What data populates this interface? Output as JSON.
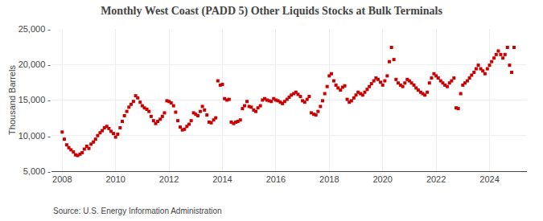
{
  "chart_data": {
    "type": "scatter",
    "title": "Monthly West Coast (PADD 5) Other Liquids Stocks at Bulk Terminals",
    "ylabel": "Thousand Barrels",
    "annotations": [
      "Source: U.S. Energy Information Administration"
    ],
    "color": "#cc0000",
    "marker": "square",
    "grid": true,
    "xlim": [
      2007.6,
      2025.4
    ],
    "ylim": [
      5000,
      25000
    ],
    "xticks": [
      2008,
      2010,
      2012,
      2014,
      2016,
      2018,
      2020,
      2022,
      2024
    ],
    "yticks": [
      {
        "value": 5000,
        "label": "5,000 -"
      },
      {
        "value": 10000,
        "label": "10,000 -"
      },
      {
        "value": 15000,
        "label": "15,000 -"
      },
      {
        "value": 20000,
        "label": "20,000 -"
      },
      {
        "value": 25000,
        "label": "25,000 -"
      }
    ],
    "x": [
      2008.0,
      2008.08,
      2008.17,
      2008.25,
      2008.33,
      2008.42,
      2008.5,
      2008.58,
      2008.67,
      2008.75,
      2008.83,
      2008.92,
      2009.0,
      2009.08,
      2009.17,
      2009.25,
      2009.33,
      2009.42,
      2009.5,
      2009.58,
      2009.67,
      2009.75,
      2009.83,
      2009.92,
      2010.0,
      2010.08,
      2010.17,
      2010.25,
      2010.33,
      2010.42,
      2010.5,
      2010.58,
      2010.67,
      2010.75,
      2010.83,
      2010.92,
      2011.0,
      2011.08,
      2011.17,
      2011.25,
      2011.33,
      2011.42,
      2011.5,
      2011.58,
      2011.67,
      2011.75,
      2011.83,
      2011.92,
      2012.0,
      2012.08,
      2012.17,
      2012.25,
      2012.33,
      2012.42,
      2012.5,
      2012.58,
      2012.67,
      2012.75,
      2012.83,
      2012.92,
      2013.0,
      2013.08,
      2013.17,
      2013.25,
      2013.33,
      2013.42,
      2013.5,
      2013.58,
      2013.67,
      2013.75,
      2013.83,
      2013.92,
      2014.0,
      2014.08,
      2014.17,
      2014.25,
      2014.33,
      2014.42,
      2014.5,
      2014.58,
      2014.67,
      2014.75,
      2014.83,
      2014.92,
      2015.0,
      2015.08,
      2015.17,
      2015.25,
      2015.33,
      2015.42,
      2015.5,
      2015.58,
      2015.67,
      2015.75,
      2015.83,
      2015.92,
      2016.0,
      2016.08,
      2016.17,
      2016.25,
      2016.33,
      2016.42,
      2016.5,
      2016.58,
      2016.67,
      2016.75,
      2016.83,
      2016.92,
      2017.0,
      2017.08,
      2017.17,
      2017.25,
      2017.33,
      2017.42,
      2017.5,
      2017.58,
      2017.67,
      2017.75,
      2017.83,
      2017.92,
      2018.0,
      2018.08,
      2018.17,
      2018.25,
      2018.33,
      2018.42,
      2018.5,
      2018.58,
      2018.67,
      2018.75,
      2018.83,
      2018.92,
      2019.0,
      2019.08,
      2019.17,
      2019.25,
      2019.33,
      2019.42,
      2019.5,
      2019.58,
      2019.67,
      2019.75,
      2019.83,
      2019.92,
      2020.0,
      2020.08,
      2020.17,
      2020.25,
      2020.33,
      2020.42,
      2020.5,
      2020.58,
      2020.67,
      2020.75,
      2020.83,
      2020.92,
      2021.0,
      2021.08,
      2021.17,
      2021.25,
      2021.33,
      2021.42,
      2021.5,
      2021.58,
      2021.67,
      2021.75,
      2021.83,
      2021.92,
      2022.0,
      2022.08,
      2022.17,
      2022.25,
      2022.33,
      2022.42,
      2022.5,
      2022.58,
      2022.67,
      2022.75,
      2022.83,
      2022.92,
      2023.0,
      2023.08,
      2023.17,
      2023.25,
      2023.33,
      2023.42,
      2023.5,
      2023.58,
      2023.67,
      2023.75,
      2023.83,
      2023.92,
      2024.0,
      2024.08,
      2024.17,
      2024.25,
      2024.33,
      2024.42,
      2024.5,
      2024.58,
      2024.67,
      2024.75,
      2024.83,
      2024.92
    ],
    "values": [
      10500,
      9500,
      8700,
      8300,
      8000,
      7700,
      7300,
      7200,
      7400,
      7600,
      8100,
      8500,
      8200,
      8800,
      9100,
      9500,
      10000,
      10400,
      10700,
      11100,
      11300,
      11000,
      10600,
      10300,
      9800,
      10200,
      11100,
      12000,
      12800,
      13400,
      14000,
      14400,
      14800,
      15600,
      15300,
      14700,
      14200,
      13900,
      13700,
      13400,
      12700,
      12100,
      11700,
      12000,
      12300,
      12700,
      13200,
      14900,
      14800,
      14600,
      14200,
      13300,
      12100,
      11200,
      10800,
      10900,
      11300,
      11600,
      12100,
      13200,
      13000,
      12800,
      13400,
      14100,
      13600,
      12900,
      11900,
      11800,
      12200,
      12500,
      17700,
      17100,
      17200,
      15200,
      15000,
      15100,
      11900,
      11700,
      11900,
      12000,
      12200,
      13800,
      14200,
      14800,
      14100,
      14000,
      13600,
      13400,
      13900,
      14200,
      15000,
      15200,
      15000,
      14900,
      14800,
      15200,
      15000,
      14900,
      14700,
      14500,
      14800,
      15100,
      15400,
      15700,
      15900,
      16100,
      15800,
      15500,
      14900,
      14700,
      15100,
      15500,
      13200,
      13000,
      12900,
      13400,
      14100,
      14900,
      15900,
      16900,
      18400,
      18700,
      17700,
      17100,
      16700,
      16400,
      16800,
      17000,
      15100,
      14700,
      14900,
      15300,
      15700,
      16100,
      15900,
      15700,
      16100,
      16500,
      16900,
      17300,
      17700,
      18100,
      17900,
      17500,
      17100,
      17700,
      18400,
      20400,
      22400,
      20700,
      17900,
      17400,
      17100,
      16900,
      17400,
      17900,
      17700,
      17400,
      17100,
      16700,
      16400,
      16100,
      15900,
      15700,
      16100,
      17400,
      18100,
      18700,
      18400,
      18100,
      17700,
      17400,
      17100,
      16900,
      17400,
      17700,
      18100,
      13900,
      13800,
      15900,
      17100,
      17400,
      17700,
      18100,
      18500,
      18900,
      19400,
      19900,
      19400,
      19100,
      18700,
      19400,
      19900,
      20400,
      20900,
      21400,
      21900,
      21400,
      20900,
      21400,
      22400,
      19900,
      18900,
      22400
    ]
  }
}
